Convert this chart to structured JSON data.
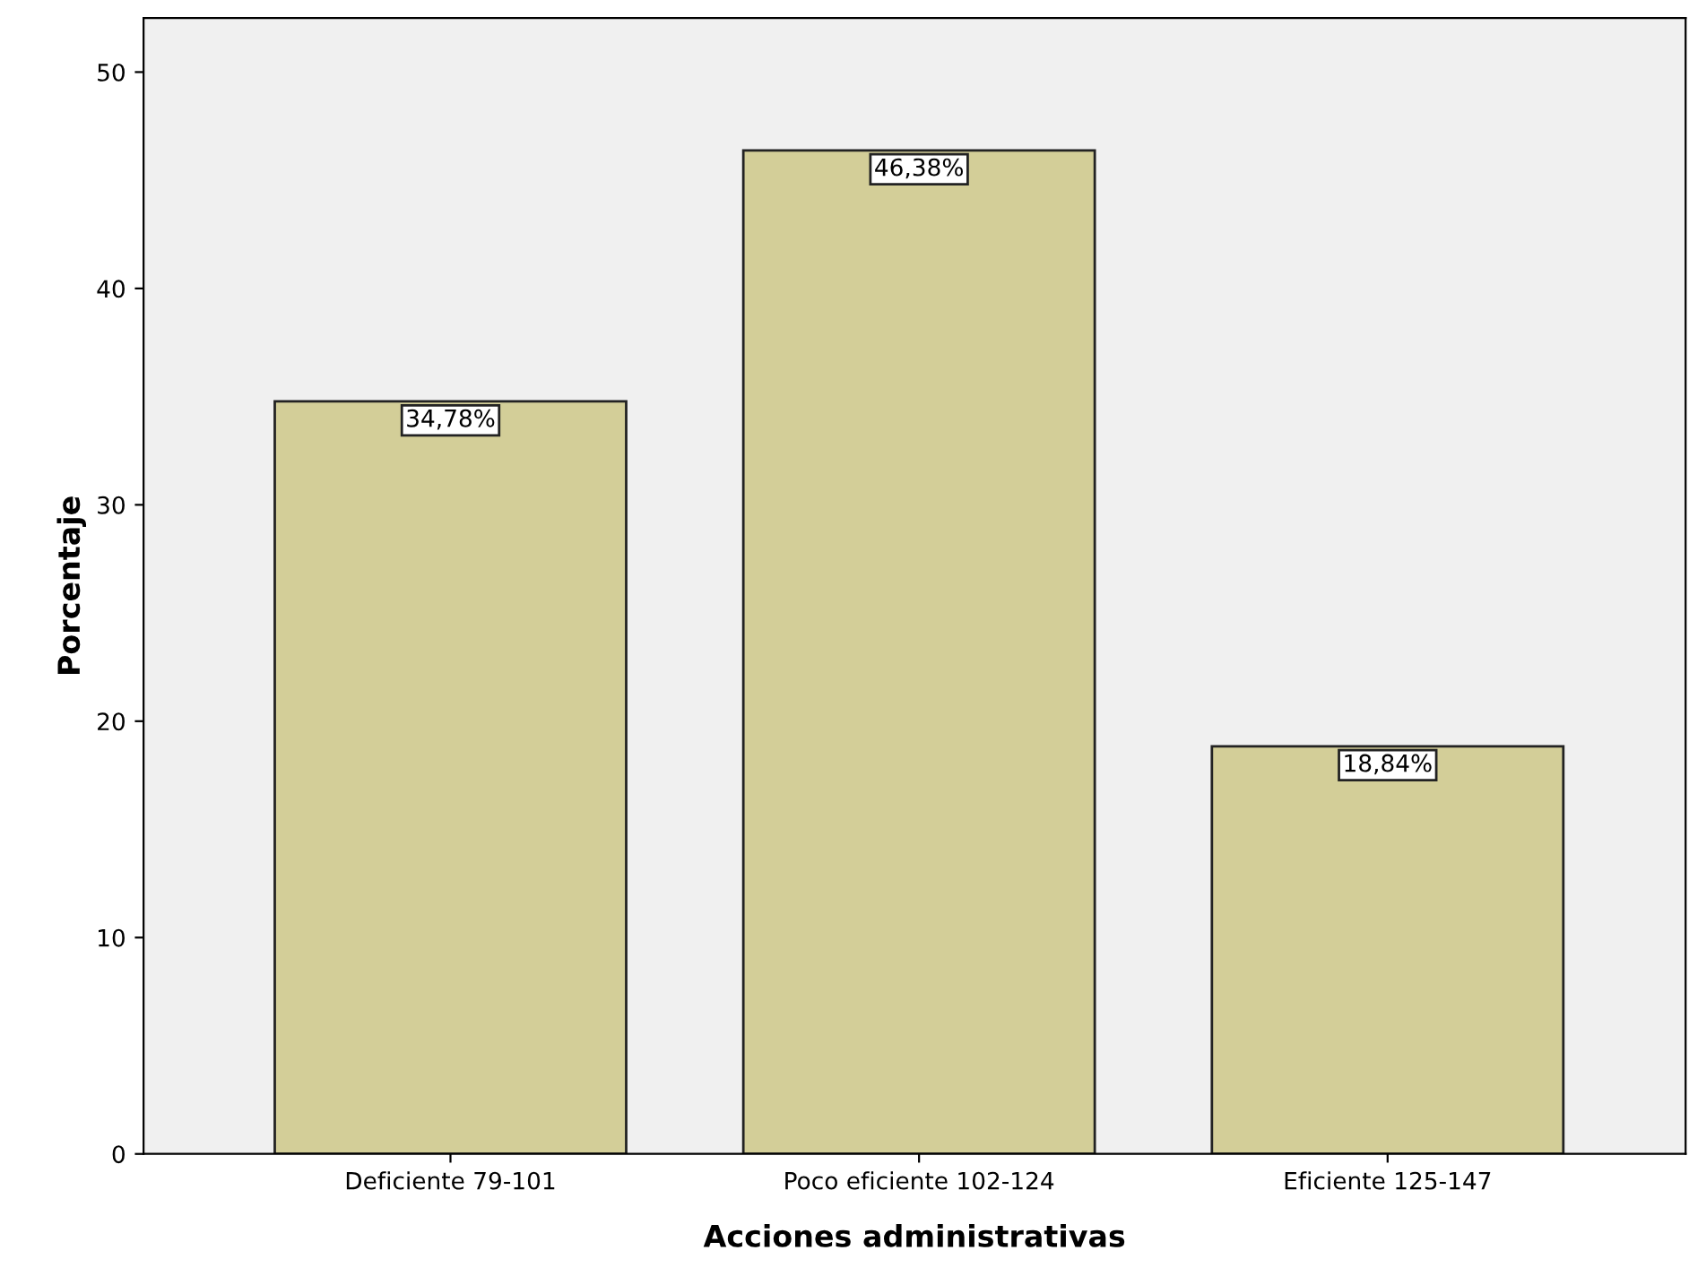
{
  "chart_data": {
    "type": "bar",
    "xlabel": "Acciones administrativas",
    "ylabel": "Porcentaje",
    "categories": [
      "Deficiente 79-101",
      "Poco eficiente 102-124",
      "Eficiente 125-147"
    ],
    "values": [
      34.78,
      46.38,
      18.84
    ],
    "value_labels": [
      "34,78%",
      "46,38%",
      "18,84%"
    ],
    "color": "#d3ce98",
    "ylim": [
      0,
      52.5
    ],
    "yticks": [
      0,
      10,
      20,
      30,
      40,
      50
    ],
    "grid": false,
    "legend": false
  }
}
